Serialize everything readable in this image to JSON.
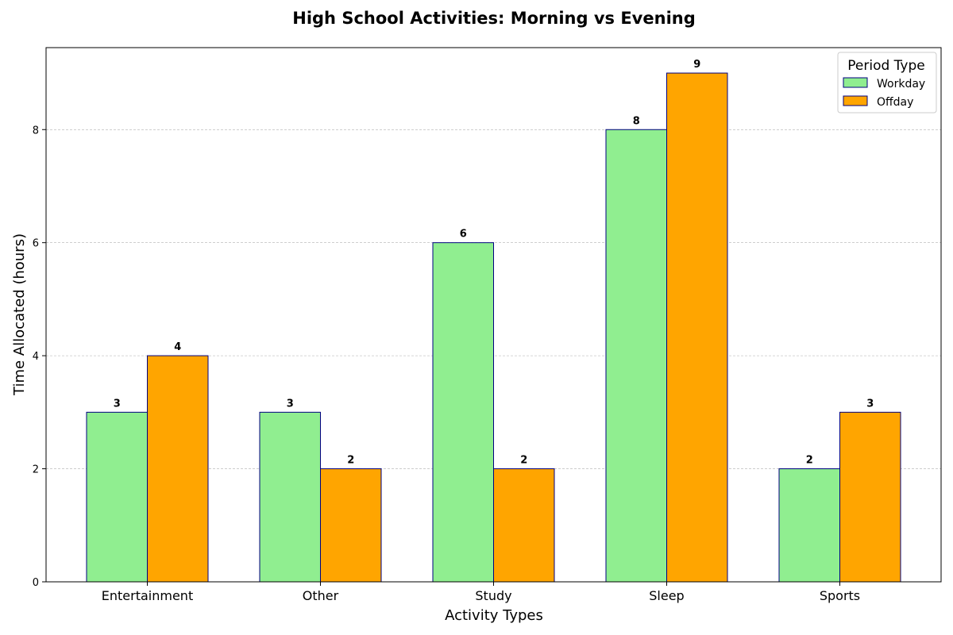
{
  "chart_data": {
    "type": "bar",
    "title": "High School Activities: Morning vs Evening",
    "xlabel": "Activity Types",
    "ylabel": "Time Allocated (hours)",
    "categories": [
      "Entertainment",
      "Other",
      "Study",
      "Sleep",
      "Sports"
    ],
    "series": [
      {
        "name": "Workday",
        "values": [
          3,
          3,
          6,
          8,
          2
        ],
        "color": "#90EE90"
      },
      {
        "name": "Offday",
        "values": [
          4,
          2,
          2,
          9,
          3
        ],
        "color": "#FFA500"
      }
    ],
    "ylim": [
      0,
      9.45
    ],
    "yticks": [
      0,
      2,
      4,
      6,
      8
    ],
    "grid": "y",
    "bar_edge_color": "#000080",
    "legend": {
      "title": "Period Type",
      "placement": "top-right"
    }
  }
}
